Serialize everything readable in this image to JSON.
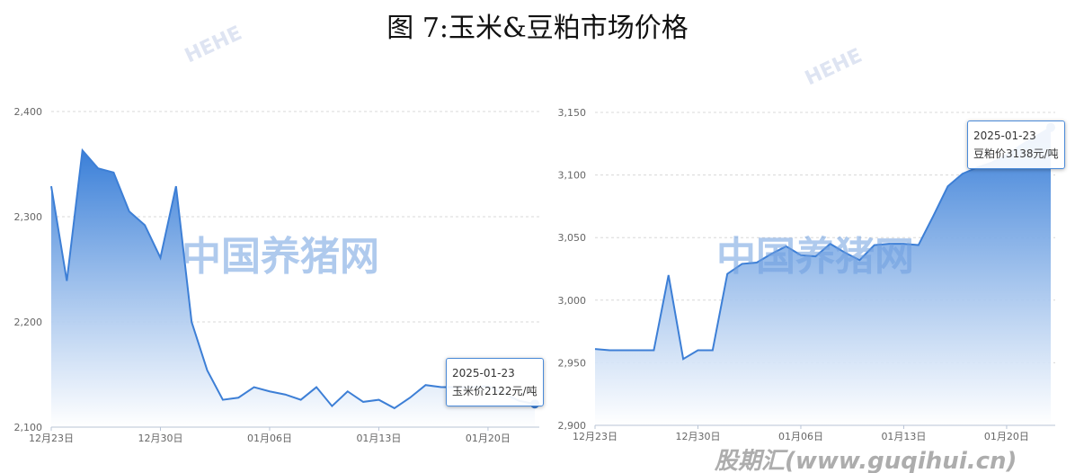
{
  "title": "图 7:玉米&豆粕市场价格",
  "watermarks": {
    "center": "中国养猪网",
    "footer": "股期汇(www.guqihui.cn)",
    "bg": "HEHE"
  },
  "colors": {
    "line": "#3d7fd6",
    "fill_top": "#3a7fd8",
    "fill_bottom": "#ffffff",
    "grid": "#d8d8d8"
  },
  "chart_data": [
    {
      "type": "area",
      "x_ticks": [
        "12月23日",
        "12月30日",
        "01月06日",
        "01月13日",
        "01月20日"
      ],
      "x": [
        "12-23",
        "12-24",
        "12-25",
        "12-26",
        "12-27",
        "12-28",
        "12-29",
        "12-30",
        "12-31",
        "01-01",
        "01-02",
        "01-03",
        "01-04",
        "01-05",
        "01-06",
        "01-07",
        "01-08",
        "01-09",
        "01-10",
        "01-11",
        "01-12",
        "01-13",
        "01-14",
        "01-15",
        "01-16",
        "01-17",
        "01-18",
        "01-19",
        "01-20",
        "01-21",
        "01-22",
        "01-23"
      ],
      "values": [
        2329,
        2239,
        2363,
        2346,
        2342,
        2305,
        2292,
        2261,
        2329,
        2200,
        2154,
        2126,
        2128,
        2138,
        2134,
        2131,
        2126,
        2138,
        2120,
        2134,
        2124,
        2126,
        2118,
        2128,
        2140,
        2138,
        2138,
        2138,
        2139,
        2132,
        2125,
        2122
      ],
      "ylim": [
        2100,
        2400
      ],
      "y_ticks": [
        "2,100",
        "2,200",
        "2,300",
        "2,400"
      ],
      "grid": true,
      "tooltip": {
        "date": "2025-01-23",
        "label": "玉米价2122元/吨"
      }
    },
    {
      "type": "area",
      "x_ticks": [
        "12月23日",
        "12月30日",
        "01月06日",
        "01月13日",
        "01月20日"
      ],
      "x": [
        "12-23",
        "12-24",
        "12-25",
        "12-26",
        "12-27",
        "12-28",
        "12-29",
        "12-30",
        "12-31",
        "01-01",
        "01-02",
        "01-03",
        "01-04",
        "01-05",
        "01-06",
        "01-07",
        "01-08",
        "01-09",
        "01-10",
        "01-11",
        "01-12",
        "01-13",
        "01-14",
        "01-15",
        "01-16",
        "01-17",
        "01-18",
        "01-19",
        "01-20",
        "01-21",
        "01-22",
        "01-23"
      ],
      "values": [
        2961,
        2960,
        2960,
        2960,
        2960,
        3020,
        2953,
        2960,
        2960,
        3021,
        3029,
        3030,
        3037,
        3043,
        3036,
        3035,
        3045,
        3038,
        3032,
        3044,
        3045,
        3045,
        3044,
        3067,
        3091,
        3101,
        3106,
        3110,
        3116,
        3124,
        3131,
        3138
      ],
      "ylim": [
        2900,
        3150
      ],
      "y_ticks": [
        "2,900",
        "2,950",
        "3,000",
        "3,050",
        "3,100",
        "3,150"
      ],
      "grid": true,
      "tooltip": {
        "date": "2025-01-23",
        "label": "豆粕价3138元/吨"
      }
    }
  ]
}
